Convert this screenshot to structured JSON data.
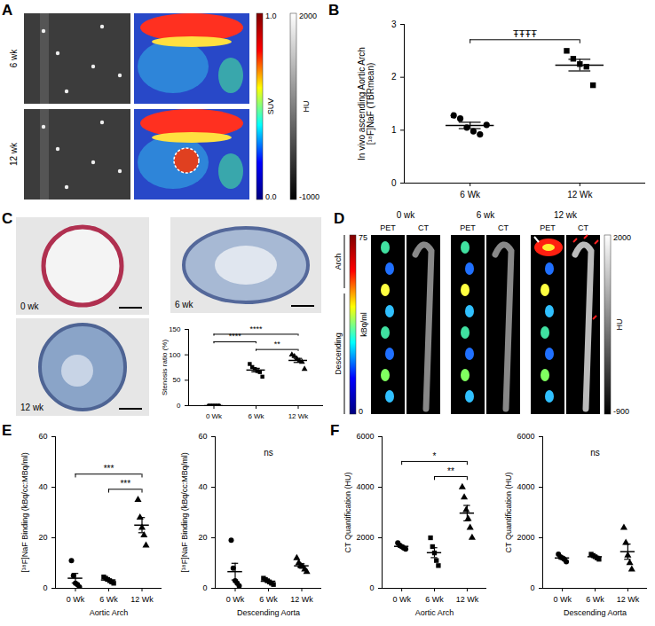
{
  "panel_labels": [
    "A",
    "B",
    "C",
    "D",
    "E",
    "F"
  ],
  "panel_A": {
    "rows": [
      "6 wk",
      "12 wk"
    ],
    "colorbars": [
      {
        "label": "SUV",
        "range": [
          0,
          1
        ],
        "ticks": [
          {
            "value": 1,
            "label": "1.0"
          },
          {
            "value": 0,
            "label": "0.0"
          }
        ]
      },
      {
        "label": "HU",
        "range": [
          -1000,
          2000
        ],
        "ticks": [
          2000,
          -1000
        ]
      }
    ]
  },
  "panel_C": {
    "images": [
      "0 wk",
      "6 wk",
      "12 wk"
    ]
  },
  "panel_D": {
    "columns": [
      "0 wk",
      "6 wk",
      "12 wk"
    ],
    "modalities": [
      "PET",
      "CT"
    ],
    "regions": [
      "Arch",
      "Descending"
    ],
    "colorbars": [
      {
        "label": "kBq/ml",
        "range": [
          0,
          75
        ],
        "ticks": [
          75,
          0
        ]
      },
      {
        "label": "HU",
        "range": [
          -900,
          2000
        ],
        "ticks": [
          2000,
          -900
        ]
      }
    ]
  },
  "chart_data": [
    {
      "type": "scatter",
      "ylabel": "In vivo ascending Aortic Arch\n[¹⁸F]NaF (TBRmean)",
      "ylim": [
        0,
        3
      ],
      "yticks": [
        0,
        1,
        2,
        3
      ],
      "series": [
        {
          "name": "6 Wk",
          "marker": "circle",
          "values": [
            1.28,
            1.22,
            1.05,
            0.98,
            0.92,
            1.1
          ],
          "mean": 1.09,
          "sem": 0.06
        },
        {
          "name": "12 Wk",
          "marker": "square",
          "values": [
            2.5,
            2.35,
            2.25,
            2.2,
            1.85
          ],
          "mean": 2.23,
          "sem": 0.11
        }
      ],
      "comparisons": [
        {
          "pair": [
            "6 Wk",
            "12 Wk"
          ],
          "label": "ŦŦŦŦ"
        }
      ]
    },
    {
      "type": "scatter",
      "ylabel": "Stenosis ratio (%)",
      "ylim": [
        0,
        150
      ],
      "yticks": [
        0,
        50,
        100,
        150
      ],
      "series": [
        {
          "name": "0 Wk",
          "marker": "circle",
          "values": [
            0,
            0,
            0,
            0,
            0
          ],
          "mean": 0,
          "sem": 0
        },
        {
          "name": "6 Wk",
          "marker": "square",
          "values": [
            82,
            76,
            72,
            68,
            66,
            57
          ],
          "mean": 70,
          "sem": 3.5
        },
        {
          "name": "12 Wk",
          "marker": "triangle",
          "values": [
            100,
            97,
            92,
            88,
            86,
            72
          ],
          "mean": 89,
          "sem": 4
        }
      ],
      "comparisons": [
        {
          "pair": [
            "6 Wk",
            "12 Wk"
          ],
          "label": "**"
        },
        {
          "pair": [
            "0 Wk",
            "6 Wk"
          ],
          "label": "****"
        },
        {
          "pair": [
            "0 Wk",
            "12 Wk"
          ],
          "label": "****"
        }
      ]
    },
    {
      "type": "scatter",
      "ylabel": "[¹⁸F]NaF Binding (kBq/cc:MBq/ml)",
      "xlabel": "Aortic Arch",
      "ylim": [
        0,
        60
      ],
      "yticks": [
        0,
        20,
        40,
        60
      ],
      "series": [
        {
          "name": "0 Wk",
          "marker": "circle",
          "values": [
            11,
            5,
            2,
            1.5,
            0.5
          ],
          "mean": 4,
          "sem": 1.9
        },
        {
          "name": "6 Wk",
          "marker": "square",
          "values": [
            4.5,
            4,
            3.5,
            3,
            2.5,
            2
          ],
          "mean": 3.3,
          "sem": 0.4
        },
        {
          "name": "12 Wk",
          "marker": "triangle",
          "values": [
            35,
            28,
            24,
            21,
            17
          ],
          "mean": 25,
          "sem": 3
        }
      ],
      "comparisons": [
        {
          "pair": [
            "6 Wk",
            "12 Wk"
          ],
          "label": "***"
        },
        {
          "pair": [
            "0 Wk",
            "12 Wk"
          ],
          "label": "***"
        }
      ]
    },
    {
      "type": "scatter",
      "ylabel": "[¹⁸F]NaF Binding (kBq/cc:MBq/ml)",
      "xlabel": "Descending Aorta",
      "ylim": [
        0,
        60
      ],
      "yticks": [
        0,
        20,
        40,
        60
      ],
      "series": [
        {
          "name": "0 Wk",
          "marker": "circle",
          "values": [
            19,
            8,
            3,
            2,
            1
          ],
          "mean": 6.6,
          "sem": 3.3
        },
        {
          "name": "6 Wk",
          "marker": "square",
          "values": [
            4,
            3.5,
            3,
            2.5,
            2,
            1.5
          ],
          "mean": 2.8,
          "sem": 0.4
        },
        {
          "name": "12 Wk",
          "marker": "triangle",
          "values": [
            12,
            10,
            9,
            8.5,
            7.5,
            6.5
          ],
          "mean": 8.9,
          "sem": 0.8
        }
      ],
      "annotation": "ns"
    },
    {
      "type": "scatter",
      "ylabel": "CT Quantification (HU)",
      "xlabel": "Aortic Arch",
      "ylim": [
        0,
        6000
      ],
      "yticks": [
        0,
        2000,
        4000,
        6000
      ],
      "series": [
        {
          "name": "0 Wk",
          "marker": "circle",
          "values": [
            1800,
            1700,
            1650,
            1600,
            1550
          ],
          "mean": 1660,
          "sem": 44
        },
        {
          "name": "6 Wk",
          "marker": "square",
          "values": [
            2000,
            1650,
            1400,
            1100,
            900
          ],
          "mean": 1410,
          "sem": 196
        },
        {
          "name": "12 Wk",
          "marker": "triangle",
          "values": [
            4000,
            3600,
            3100,
            2750,
            2400,
            2000
          ],
          "mean": 2975,
          "sem": 305
        }
      ],
      "comparisons": [
        {
          "pair": [
            "6 Wk",
            "12 Wk"
          ],
          "label": "**"
        },
        {
          "pair": [
            "0 Wk",
            "12 Wk"
          ],
          "label": "*"
        }
      ]
    },
    {
      "type": "scatter",
      "ylabel": "CT Quantification (HU)",
      "xlabel": "Descending Aorta",
      "ylim": [
        0,
        6000
      ],
      "yticks": [
        0,
        2000,
        4000,
        6000
      ],
      "series": [
        {
          "name": "0 Wk",
          "marker": "circle",
          "values": [
            1350,
            1250,
            1200,
            1150,
            1050
          ],
          "mean": 1200,
          "sem": 50
        },
        {
          "name": "6 Wk",
          "marker": "square",
          "values": [
            1350,
            1300,
            1250,
            1200,
            1150
          ],
          "mean": 1250,
          "sem": 35
        },
        {
          "name": "12 Wk",
          "marker": "triangle",
          "values": [
            2400,
            1800,
            1300,
            1000,
            750
          ],
          "mean": 1450,
          "sem": 300
        }
      ],
      "annotation": "ns"
    }
  ]
}
